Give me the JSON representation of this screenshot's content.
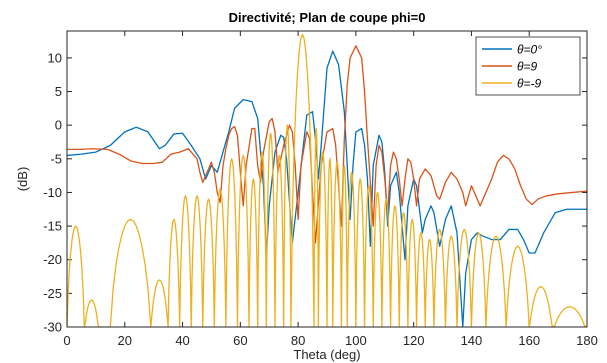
{
  "chart_data": {
    "type": "line",
    "title": "Directivité; Plan de coupe phi=0",
    "xlabel": "Theta (deg)",
    "ylabel": "(dB)",
    "xlim": [
      0,
      180
    ],
    "ylim": [
      -30,
      14
    ],
    "xticks": [
      0,
      20,
      40,
      60,
      80,
      100,
      120,
      140,
      160,
      180
    ],
    "yticks": [
      -30,
      -25,
      -20,
      -15,
      -10,
      -5,
      0,
      5,
      10
    ],
    "grid": false,
    "legend_position": "top-right",
    "series": [
      {
        "name": "θ=0°",
        "color": "#0072BD",
        "points": [
          [
            0,
            -4.5
          ],
          [
            5,
            -4.3
          ],
          [
            10,
            -4
          ],
          [
            15,
            -3
          ],
          [
            20,
            -1
          ],
          [
            24,
            -0.3
          ],
          [
            28,
            -1
          ],
          [
            32,
            -3.5
          ],
          [
            34,
            -3
          ],
          [
            37,
            -1.3
          ],
          [
            40,
            -1.2
          ],
          [
            43,
            -3
          ],
          [
            46,
            -5
          ],
          [
            48,
            -8
          ],
          [
            50,
            -6
          ],
          [
            52,
            -7
          ],
          [
            54,
            -4
          ],
          [
            56,
            -1
          ],
          [
            58,
            2.5
          ],
          [
            61,
            3.8
          ],
          [
            64,
            3.5
          ],
          [
            66,
            1
          ],
          [
            68,
            -9
          ],
          [
            69,
            -19.5
          ],
          [
            70,
            -12
          ],
          [
            72,
            -4
          ],
          [
            74,
            -1.5
          ],
          [
            75,
            -1.8
          ],
          [
            76,
            -5
          ],
          [
            78,
            -17.5
          ],
          [
            80,
            -10
          ],
          [
            83,
            1.5
          ],
          [
            85,
            2
          ],
          [
            86,
            -2
          ],
          [
            87,
            -8
          ],
          [
            88,
            -3
          ],
          [
            90,
            8.5
          ],
          [
            92,
            11
          ],
          [
            94,
            9
          ],
          [
            96,
            2
          ],
          [
            97,
            -6
          ],
          [
            98,
            -14
          ],
          [
            99,
            -6
          ],
          [
            100,
            -1
          ],
          [
            102,
            -0.5
          ],
          [
            103,
            -3
          ],
          [
            104,
            -8
          ],
          [
            105,
            -18
          ],
          [
            106,
            -6
          ],
          [
            108,
            -1.5
          ],
          [
            109,
            -2.5
          ],
          [
            110,
            -7
          ],
          [
            111,
            -15
          ],
          [
            112,
            -9
          ],
          [
            114,
            -7
          ],
          [
            115,
            -10
          ],
          [
            117,
            -20
          ],
          [
            118,
            -12
          ],
          [
            120,
            -8
          ],
          [
            121,
            -9
          ],
          [
            123,
            -16
          ],
          [
            124,
            -14
          ],
          [
            126,
            -12
          ],
          [
            127,
            -13
          ],
          [
            129,
            -18
          ],
          [
            131,
            -14
          ],
          [
            133,
            -12
          ],
          [
            135,
            -16
          ],
          [
            137,
            -30
          ],
          [
            138,
            -22
          ],
          [
            140,
            -17
          ],
          [
            142,
            -16
          ],
          [
            144,
            -16.5
          ],
          [
            147,
            -17
          ],
          [
            150,
            -17
          ],
          [
            153,
            -15.5
          ],
          [
            156,
            -15.5
          ],
          [
            158,
            -17
          ],
          [
            160,
            -19
          ],
          [
            162,
            -19
          ],
          [
            165,
            -16
          ],
          [
            169,
            -13
          ],
          [
            173,
            -12.5
          ],
          [
            180,
            -12.5
          ]
        ]
      },
      {
        "name": "θ=9",
        "color": "#D95319",
        "points": [
          [
            0,
            -3.6
          ],
          [
            4,
            -3.6
          ],
          [
            9,
            -3.5
          ],
          [
            14,
            -3.6
          ],
          [
            18,
            -4.3
          ],
          [
            22,
            -5.3
          ],
          [
            26,
            -5.7
          ],
          [
            30,
            -5.7
          ],
          [
            33,
            -5.5
          ],
          [
            36,
            -4.3
          ],
          [
            39,
            -4
          ],
          [
            42,
            -3.5
          ],
          [
            44,
            -4.5
          ],
          [
            45,
            -5
          ],
          [
            46,
            -7
          ],
          [
            47,
            -8.5
          ],
          [
            49,
            -6.5
          ],
          [
            50,
            -5.5
          ],
          [
            51,
            -7
          ],
          [
            52,
            -10
          ],
          [
            53,
            -11.5
          ],
          [
            54,
            -6
          ],
          [
            55,
            -3.5
          ],
          [
            56,
            -1.5
          ],
          [
            57,
            -0.5
          ],
          [
            58,
            -0.2
          ],
          [
            59,
            -1.5
          ],
          [
            60,
            -7
          ],
          [
            61,
            -12
          ],
          [
            62,
            -6
          ],
          [
            64,
            -0.5
          ],
          [
            65,
            -0.5
          ],
          [
            66,
            -6
          ],
          [
            67,
            -8.5
          ],
          [
            68,
            -4
          ],
          [
            70,
            0.5
          ],
          [
            71,
            1
          ],
          [
            72,
            -1
          ],
          [
            73,
            -7
          ],
          [
            75,
            -3
          ],
          [
            77,
            0
          ],
          [
            78,
            -1
          ],
          [
            79,
            -6
          ],
          [
            80,
            -14
          ],
          [
            81,
            -6
          ],
          [
            83,
            -1
          ],
          [
            84,
            -2
          ],
          [
            85,
            -10
          ],
          [
            86,
            -17.5
          ],
          [
            88,
            -6
          ],
          [
            90,
            -1
          ],
          [
            92,
            -0.5
          ],
          [
            93,
            -3
          ],
          [
            95,
            -15
          ],
          [
            96,
            -2
          ],
          [
            97,
            6
          ],
          [
            98,
            10
          ],
          [
            100,
            11.8
          ],
          [
            102,
            10
          ],
          [
            103,
            5
          ],
          [
            104,
            -2
          ],
          [
            106,
            -15
          ],
          [
            107,
            -6
          ],
          [
            108,
            -3
          ],
          [
            109,
            -4
          ],
          [
            110,
            -8
          ],
          [
            111,
            -13
          ],
          [
            112,
            -6
          ],
          [
            113,
            -4
          ],
          [
            114,
            -5
          ],
          [
            115,
            -8
          ],
          [
            116,
            -12
          ],
          [
            117,
            -8
          ],
          [
            118,
            -5
          ],
          [
            119,
            -5.5
          ],
          [
            120,
            -8
          ],
          [
            121,
            -12
          ],
          [
            122,
            -8
          ],
          [
            124,
            -6.5
          ],
          [
            126,
            -7.5
          ],
          [
            128,
            -10.5
          ],
          [
            129,
            -11
          ],
          [
            131,
            -8.5
          ],
          [
            133,
            -7
          ],
          [
            135,
            -8
          ],
          [
            137,
            -10
          ],
          [
            138,
            -12
          ],
          [
            140,
            -9
          ],
          [
            142,
            -11
          ],
          [
            143,
            -12
          ],
          [
            144,
            -11
          ],
          [
            147,
            -8
          ],
          [
            149,
            -5.5
          ],
          [
            151,
            -4.5
          ],
          [
            153,
            -5
          ],
          [
            155,
            -6.5
          ],
          [
            157,
            -9
          ],
          [
            159,
            -11
          ],
          [
            161,
            -11.8
          ],
          [
            163,
            -11
          ],
          [
            166,
            -10.5
          ],
          [
            170,
            -10.2
          ],
          [
            175,
            -10
          ],
          [
            180,
            -9.8
          ]
        ]
      },
      {
        "name": "θ=-9",
        "color": "#EDB120",
        "lobes": [
          [
            0,
            6,
            -15
          ],
          [
            6,
            11,
            -26
          ],
          [
            11,
            15,
            -30
          ],
          [
            15,
            29,
            -14
          ],
          [
            29,
            35,
            -23
          ],
          [
            35,
            39,
            -14
          ],
          [
            39,
            43,
            -10.5
          ],
          [
            43,
            47,
            -10.5
          ],
          [
            47,
            51,
            -11
          ],
          [
            51,
            55,
            -9.5
          ],
          [
            55,
            59,
            -5
          ],
          [
            59,
            63,
            -4.5
          ],
          [
            63,
            66,
            -8
          ],
          [
            66,
            69,
            -4
          ],
          [
            69,
            72,
            -1.2
          ],
          [
            72,
            75,
            -4.5
          ],
          [
            75,
            77.5,
            0
          ],
          [
            77.5,
            85.5,
            13.5
          ],
          [
            85.5,
            87,
            -0.5
          ],
          [
            87,
            90,
            -4
          ],
          [
            90,
            92,
            -5
          ],
          [
            92,
            95,
            -5.5
          ],
          [
            95,
            97,
            -6
          ],
          [
            97,
            100,
            -7
          ],
          [
            100,
            103,
            -8
          ],
          [
            103,
            106,
            -9
          ],
          [
            106,
            109,
            -10
          ],
          [
            109,
            112,
            -11
          ],
          [
            112,
            115,
            -12
          ],
          [
            115,
            118,
            -13
          ],
          [
            118,
            121,
            -14
          ],
          [
            121,
            124,
            -16
          ],
          [
            124,
            127,
            -17
          ],
          [
            127,
            131,
            -15.5
          ],
          [
            131,
            135,
            -16.5
          ],
          [
            135,
            140,
            -15.5
          ],
          [
            140,
            145,
            -16
          ],
          [
            145,
            152,
            -16.5
          ],
          [
            152,
            160,
            -18
          ],
          [
            160,
            168,
            -24
          ],
          [
            168,
            180,
            -27
          ]
        ]
      }
    ]
  }
}
